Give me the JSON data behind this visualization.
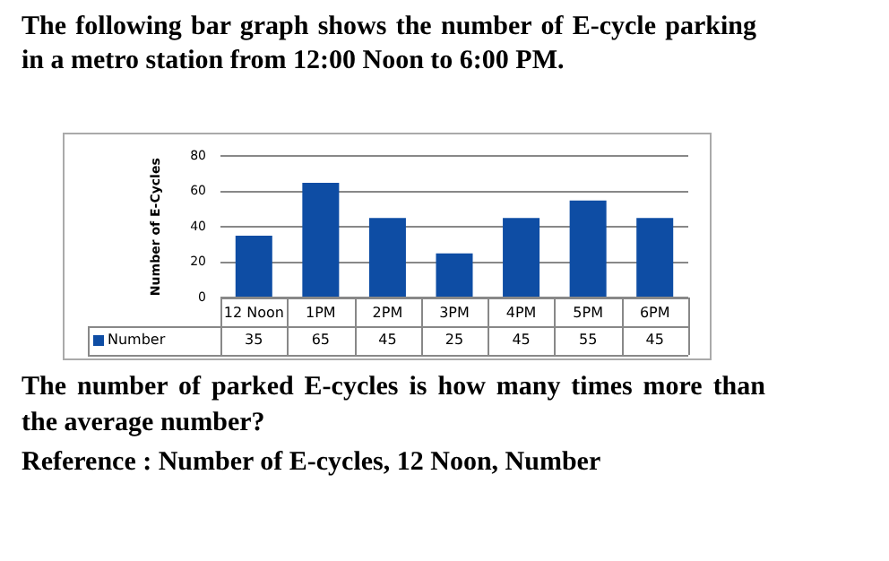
{
  "chart_data": {
    "type": "bar",
    "title": "The following bar graph shows the number of E-cycle parking in a metro station from 12:00 Noon to 6:00 PM.",
    "ylabel": "Number of E-Cycles",
    "categories": [
      "12 Noon",
      "1PM",
      "2PM",
      "3PM",
      "4PM",
      "5PM",
      "6PM"
    ],
    "series": [
      {
        "name": "Number",
        "color": "#0e4da4",
        "values": [
          35,
          65,
          45,
          25,
          45,
          55,
          45
        ]
      }
    ],
    "ylim": [
      0,
      80
    ],
    "yticks": [
      0,
      20,
      40,
      60,
      80
    ],
    "grid": "y",
    "data_labels": true,
    "legend": "bottom",
    "annotations": [
      "The number of parked E-cycles is how many times more than the average number?",
      "Reference : Number of E-cycles, 12 Noon, Number"
    ]
  }
}
